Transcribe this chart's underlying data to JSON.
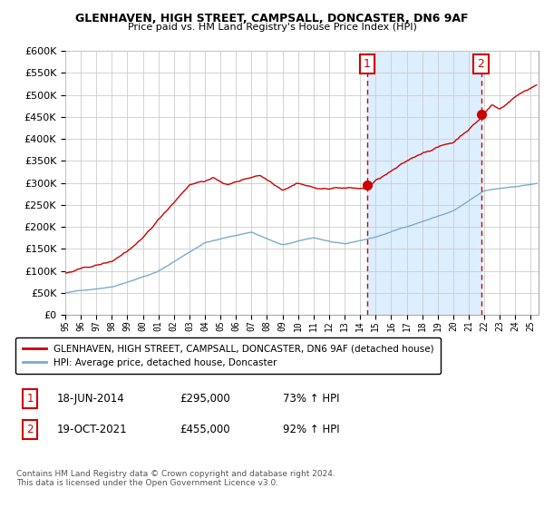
{
  "title": "GLENHAVEN, HIGH STREET, CAMPSALL, DONCASTER, DN6 9AF",
  "subtitle": "Price paid vs. HM Land Registry's House Price Index (HPI)",
  "legend_label_red": "GLENHAVEN, HIGH STREET, CAMPSALL, DONCASTER, DN6 9AF (detached house)",
  "legend_label_blue": "HPI: Average price, detached house, Doncaster",
  "annotation1_date": "18-JUN-2014",
  "annotation1_price": "£295,000",
  "annotation1_hpi": "73% ↑ HPI",
  "annotation2_date": "19-OCT-2021",
  "annotation2_price": "£455,000",
  "annotation2_hpi": "92% ↑ HPI",
  "footnote": "Contains HM Land Registry data © Crown copyright and database right 2024.\nThis data is licensed under the Open Government Licence v3.0.",
  "vline1_x": 2014.46,
  "vline2_x": 2021.79,
  "marker1_red_y": 295000,
  "marker2_red_y": 455000,
  "ylim": [
    0,
    600000
  ],
  "xlim": [
    1995.0,
    2025.5
  ],
  "red_color": "#cc0000",
  "blue_color": "#7aaccd",
  "shade_color": "#ddeeff",
  "vline_color": "#cc0000",
  "background_color": "#ffffff",
  "grid_color": "#cccccc"
}
